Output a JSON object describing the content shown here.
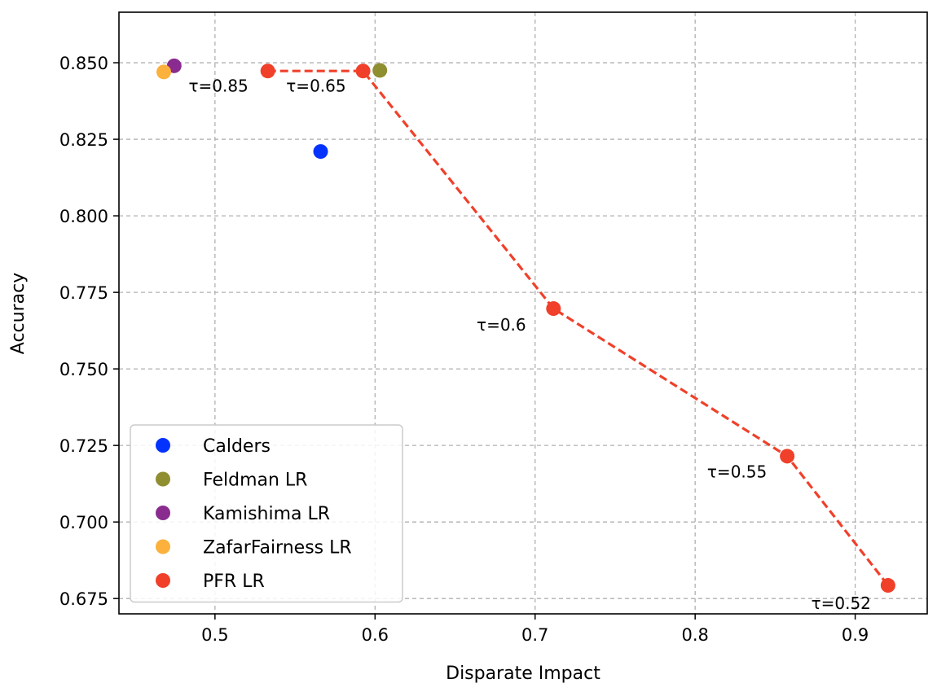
{
  "chart_data": {
    "type": "scatter",
    "title": "",
    "xlabel": "Disparate Impact",
    "ylabel": "Accuracy",
    "xlim": [
      0.44,
      0.945
    ],
    "ylim": [
      0.67,
      0.8665
    ],
    "xticks": [
      0.5,
      0.6,
      0.7,
      0.8,
      0.9
    ],
    "xtick_labels": [
      "0.5",
      "0.6",
      "0.7",
      "0.8",
      "0.9"
    ],
    "yticks": [
      0.675,
      0.7,
      0.725,
      0.75,
      0.775,
      0.8,
      0.825,
      0.85
    ],
    "ytick_labels": [
      "0.675",
      "0.700",
      "0.725",
      "0.750",
      "0.775",
      "0.800",
      "0.825",
      "0.850"
    ],
    "grid": true,
    "legend_position": "lower-left",
    "series": [
      {
        "name": "Calders",
        "color": "#0433ff",
        "line": false,
        "points": [
          {
            "x": 0.566,
            "y": 0.821
          }
        ]
      },
      {
        "name": "Feldman LR",
        "color": "#8f8e31",
        "line": false,
        "points": [
          {
            "x": 0.603,
            "y": 0.8475
          }
        ]
      },
      {
        "name": "Kamishima LR",
        "color": "#8a2c8f",
        "line": false,
        "points": [
          {
            "x": 0.4745,
            "y": 0.849
          }
        ]
      },
      {
        "name": "ZafarFairness LR",
        "color": "#fbb13c",
        "line": false,
        "points": [
          {
            "x": 0.468,
            "y": 0.847
          }
        ]
      },
      {
        "name": "PFR LR",
        "color": "#f0402a",
        "line": true,
        "points": [
          {
            "x": 0.533,
            "y": 0.8473
          },
          {
            "x": 0.5925,
            "y": 0.8473
          },
          {
            "x": 0.7115,
            "y": 0.7697
          },
          {
            "x": 0.8575,
            "y": 0.7215
          },
          {
            "x": 0.9205,
            "y": 0.6793
          }
        ]
      }
    ],
    "annotations": [
      {
        "text": "τ=0.85",
        "x": 0.4835,
        "y": 0.8406
      },
      {
        "text": "τ=0.65",
        "x": 0.5445,
        "y": 0.8406
      },
      {
        "text": "τ=0.6",
        "x": 0.6635,
        "y": 0.7625
      },
      {
        "text": "τ=0.55",
        "x": 0.8075,
        "y": 0.7145
      },
      {
        "text": "τ=0.52",
        "x": 0.8725,
        "y": 0.6716
      }
    ]
  }
}
